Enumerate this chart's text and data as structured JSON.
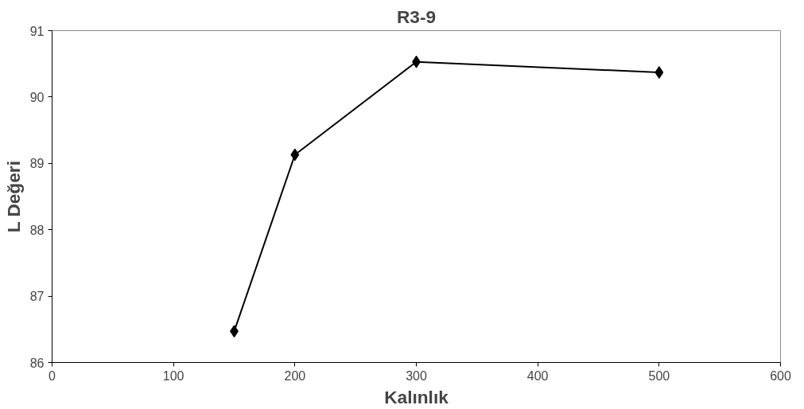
{
  "chart_data": {
    "type": "line",
    "title": "R3-9",
    "xlabel": "Kalınlık",
    "ylabel": "L Değeri",
    "x": [
      150,
      200,
      300,
      500
    ],
    "series": [
      {
        "color": "#000000",
        "values": [
          86.47,
          89.13,
          90.53,
          90.37
        ]
      }
    ],
    "xlim": [
      0,
      600
    ],
    "xticks": [
      0,
      100,
      200,
      300,
      400,
      500,
      600
    ],
    "ylim": [
      86,
      91
    ],
    "yticks": [
      86,
      87,
      88,
      89,
      90,
      91
    ],
    "marker": "diamond",
    "line_style": "solid",
    "grid": false
  }
}
